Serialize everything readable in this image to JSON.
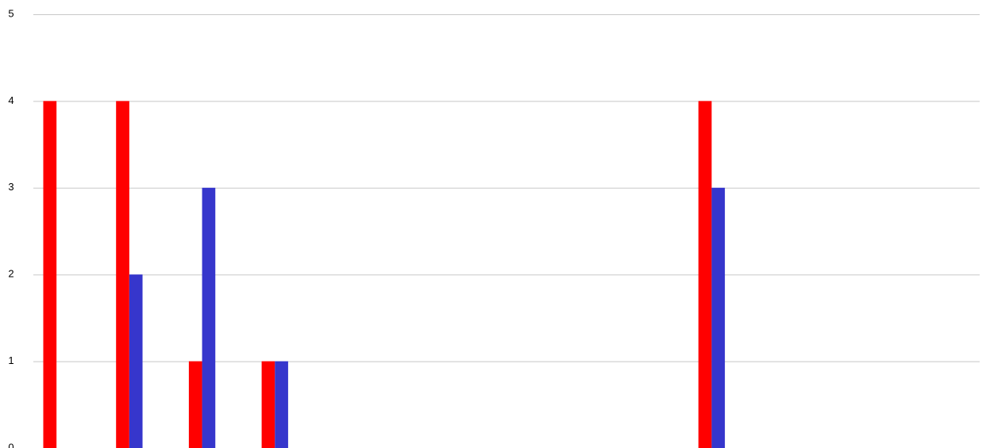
{
  "chart_data": {
    "type": "bar",
    "categories": [
      null,
      null,
      null,
      null,
      null,
      null,
      null,
      null,
      null,
      null,
      null,
      null,
      null
    ],
    "series": [
      {
        "color": "#ff0000",
        "values": [
          4,
          4,
          1,
          1,
          0,
          0,
          0,
          0,
          0,
          4,
          0,
          0,
          0
        ]
      },
      {
        "color": "#3636cc",
        "values": [
          0,
          2,
          3,
          1,
          0,
          0,
          0,
          0,
          0,
          3,
          0,
          0,
          0
        ]
      }
    ],
    "ylim": [
      0,
      5
    ],
    "yticks": [
      0,
      1,
      2,
      3,
      4,
      5
    ],
    "grid": true
  }
}
